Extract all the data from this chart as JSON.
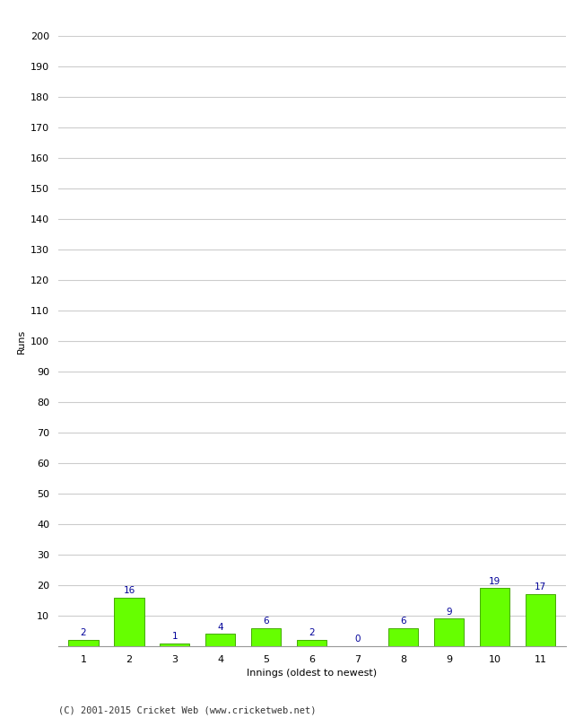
{
  "xlabel": "Innings (oldest to newest)",
  "ylabel": "Runs",
  "categories": [
    1,
    2,
    3,
    4,
    5,
    6,
    7,
    8,
    9,
    10,
    11
  ],
  "values": [
    2,
    16,
    1,
    4,
    6,
    2,
    0,
    6,
    9,
    19,
    17
  ],
  "bar_color": "#66ff00",
  "bar_edge_color": "#44aa00",
  "label_color": "#000099",
  "ylim": [
    0,
    200
  ],
  "yticks": [
    0,
    10,
    20,
    30,
    40,
    50,
    60,
    70,
    80,
    90,
    100,
    110,
    120,
    130,
    140,
    150,
    160,
    170,
    180,
    190,
    200
  ],
  "background_color": "#ffffff",
  "grid_color": "#cccccc",
  "footer": "(C) 2001-2015 Cricket Web (www.cricketweb.net)",
  "label_fontsize": 7.5,
  "axis_tick_fontsize": 8,
  "axis_label_fontsize": 8,
  "footer_fontsize": 7.5
}
